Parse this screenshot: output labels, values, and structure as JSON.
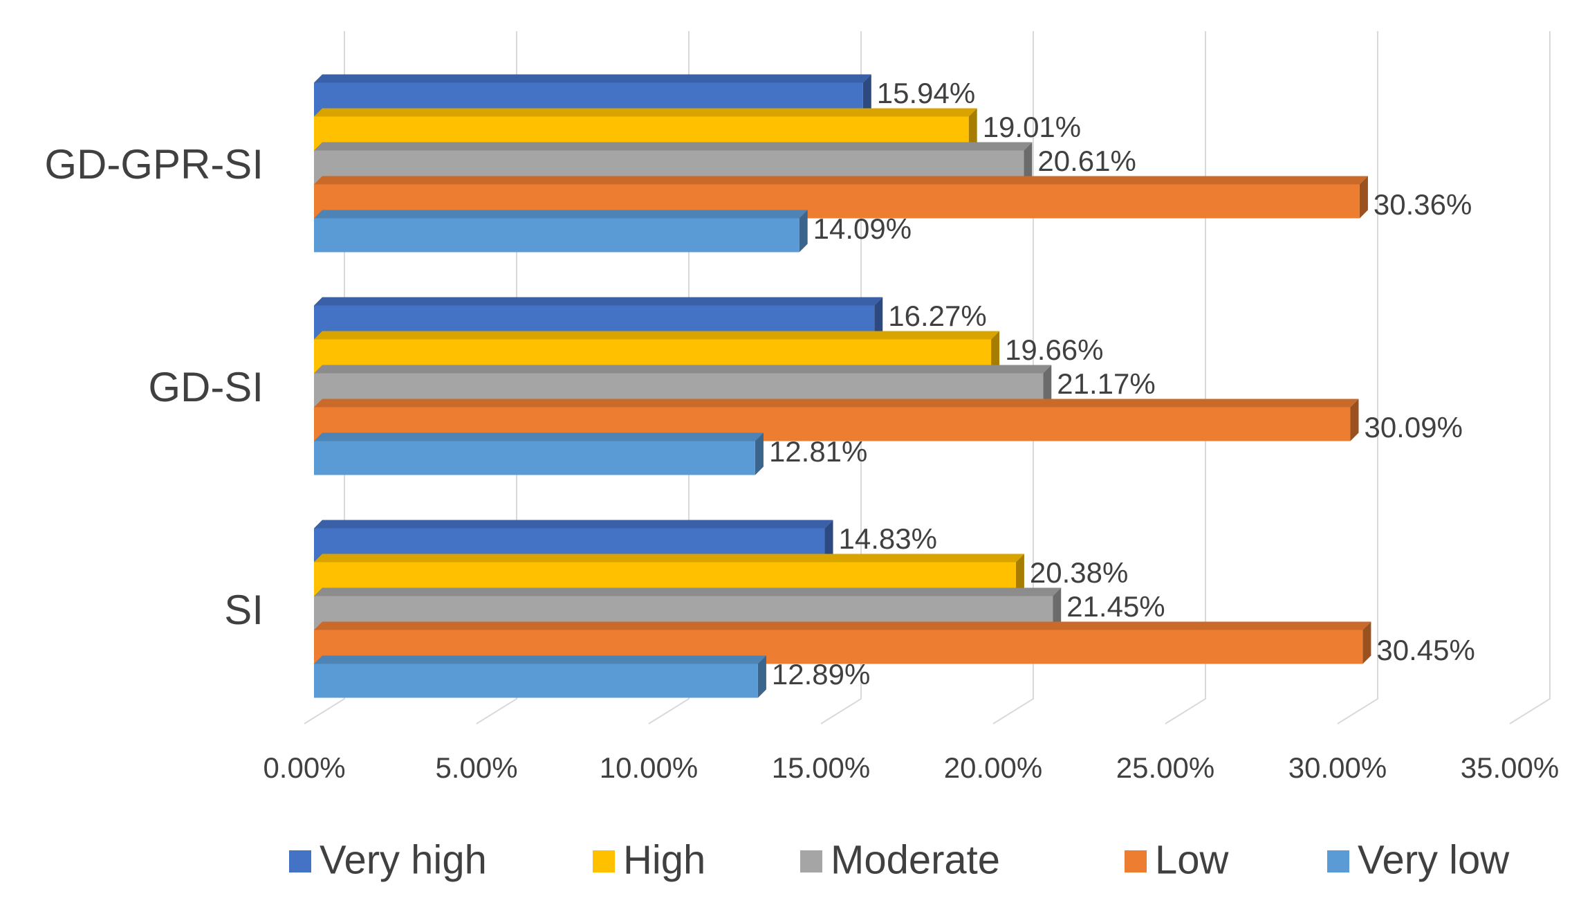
{
  "chart_data": {
    "type": "bar",
    "orientation": "horizontal",
    "style": "3d",
    "categories": [
      "GD-GPR-SI",
      "GD-SI",
      "SI"
    ],
    "series": [
      {
        "name": "Very high",
        "color": "#4472c4",
        "values": [
          15.94,
          16.27,
          14.83
        ],
        "value_labels": [
          "15.94%",
          "16.27%",
          "14.83%"
        ]
      },
      {
        "name": "High",
        "color": "#ffc000",
        "values": [
          19.01,
          19.66,
          20.38
        ],
        "value_labels": [
          "19.01%",
          "19.66%",
          "20.38%"
        ]
      },
      {
        "name": "Moderate",
        "color": "#a5a5a5",
        "values": [
          20.61,
          21.17,
          21.45
        ],
        "value_labels": [
          "20.61%",
          "21.17%",
          "21.45%"
        ]
      },
      {
        "name": "Low",
        "color": "#ed7d31",
        "values": [
          30.36,
          30.09,
          30.45
        ],
        "value_labels": [
          "30.36%",
          "30.09%",
          "30.45%"
        ]
      },
      {
        "name": "Very low",
        "color": "#5b9bd5",
        "values": [
          14.09,
          12.81,
          12.89
        ],
        "value_labels": [
          "14.09%",
          "12.81%",
          "12.89%"
        ]
      }
    ],
    "xlim": [
      0,
      35
    ],
    "xticks": [
      {
        "value": 0,
        "label": "0.00%"
      },
      {
        "value": 5,
        "label": "5.00%"
      },
      {
        "value": 10,
        "label": "10.00%"
      },
      {
        "value": 15,
        "label": "15.00%"
      },
      {
        "value": 20,
        "label": "20.00%"
      },
      {
        "value": 25,
        "label": "25.00%"
      },
      {
        "value": 30,
        "label": "30.00%"
      },
      {
        "value": 35,
        "label": "35.00%"
      }
    ],
    "grid": true,
    "legend": "bottom"
  }
}
